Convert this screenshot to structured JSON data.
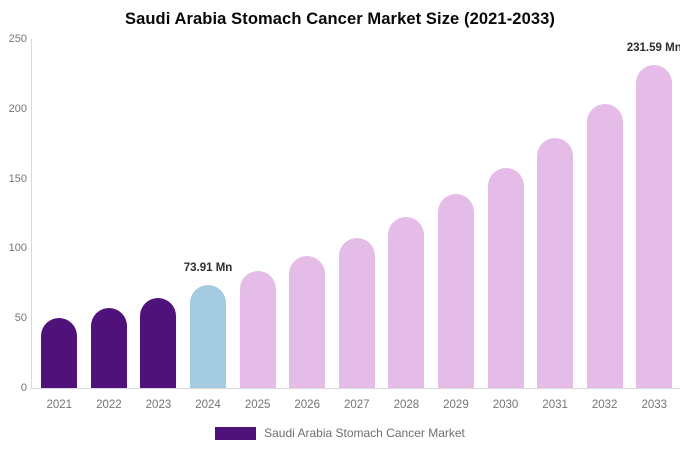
{
  "title": "Saudi Arabia Stomach Cancer Market Size (2021-2033)",
  "colors": {
    "historical_bar": "#4e127a",
    "current_year_bar": "#a5cbe0",
    "forecast_bar": "#e5bce8",
    "axis_line": "#d9d9d9",
    "tick_text": "#757575",
    "annotation_text": "#2d2d2d",
    "legend_text": "#6e6e6e"
  },
  "chart_data": {
    "type": "bar",
    "title": "Saudi Arabia Stomach Cancer Market Size (2021-2033)",
    "xlabel": "",
    "ylabel": "",
    "unit": "Mn",
    "categories": [
      "2021",
      "2022",
      "2023",
      "2024",
      "2025",
      "2026",
      "2027",
      "2028",
      "2029",
      "2030",
      "2031",
      "2032",
      "2033"
    ],
    "values": [
      50.5,
      57.4,
      65.1,
      73.91,
      83.9,
      95.3,
      108.2,
      122.8,
      139.4,
      158.3,
      179.7,
      204.0,
      231.59
    ],
    "bar_colors": [
      "#4e127a",
      "#4e127a",
      "#4e127a",
      "#a5cbe0",
      "#e5bce8",
      "#e5bce8",
      "#e5bce8",
      "#e5bce8",
      "#e5bce8",
      "#e5bce8",
      "#e5bce8",
      "#e5bce8",
      "#e5bce8"
    ],
    "ylim": [
      0,
      250
    ],
    "yticks": [
      0,
      50,
      100,
      150,
      200,
      250
    ],
    "grid": false,
    "annotations": [
      {
        "category": "2024",
        "text": "73.91 Mn"
      },
      {
        "category": "2033",
        "text": "231.59 Mn"
      }
    ],
    "legend_position": "bottom",
    "legend": [
      {
        "label": "Saudi Arabia Stomach Cancer Market",
        "color": "#4e127a"
      }
    ]
  }
}
